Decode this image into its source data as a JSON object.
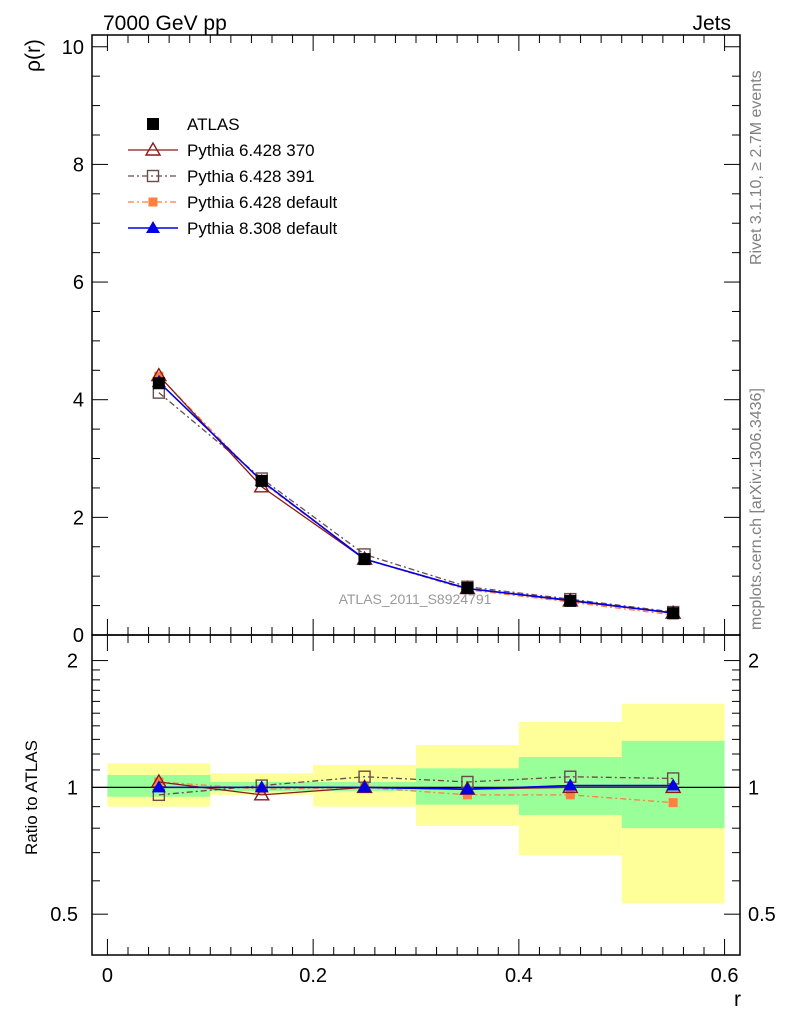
{
  "header": {
    "left": "7000 GeV pp",
    "right": "Jets"
  },
  "side_labels": {
    "rivet": "Rivet 3.1.10, ≥ 2.7M events",
    "mcplots": "mcplots.cern.ch [arXiv:1306.3436]"
  },
  "analysis_id": "ATLAS_2011_S8924791",
  "colors": {
    "data": "#000000",
    "p370": "#8b1a1a",
    "p391": "#6b4a4a",
    "p6def": "#ff7f3f",
    "p8def": "#0000e6",
    "band_stat": "#99ff99",
    "band_total": "#ffff99"
  },
  "chart_data": [
    {
      "type": "line",
      "panel": "main",
      "xlabel": "",
      "ylabel": "ρ(r)",
      "xlim": [
        -0.015,
        0.615
      ],
      "ylim": [
        0,
        10.2
      ],
      "yticks": [
        0,
        2,
        4,
        6,
        8,
        10
      ],
      "ytick_labels": [
        "0",
        "2",
        "4",
        "6",
        "8",
        "10"
      ],
      "x": [
        0.05,
        0.15,
        0.25,
        0.35,
        0.45,
        0.55
      ],
      "legend_position": "top-left",
      "series": [
        {
          "key": "data",
          "name": "ATLAS",
          "marker": "filled-square",
          "values": [
            4.28,
            2.62,
            1.29,
            0.8,
            0.58,
            0.37
          ]
        },
        {
          "key": "p370",
          "name": "Pythia 6.428 370",
          "marker": "open-triangle",
          "line": "solid",
          "values": [
            4.41,
            2.52,
            1.29,
            0.79,
            0.58,
            0.37
          ]
        },
        {
          "key": "p391",
          "name": "Pythia 6.428 391",
          "marker": "open-square",
          "line": "dash-dot",
          "values": [
            4.12,
            2.66,
            1.37,
            0.82,
            0.61,
            0.39
          ]
        },
        {
          "key": "p6def",
          "name": "Pythia 6.428 default",
          "marker": "filled-square-small",
          "line": "dash-dot",
          "values": [
            4.4,
            2.6,
            1.29,
            0.77,
            0.56,
            0.34
          ]
        },
        {
          "key": "p8def",
          "name": "Pythia 8.308 default",
          "marker": "filled-triangle",
          "line": "solid",
          "values": [
            4.3,
            2.62,
            1.29,
            0.79,
            0.59,
            0.375
          ]
        }
      ]
    },
    {
      "type": "line",
      "panel": "ratio",
      "xlabel": "r",
      "ylabel": "Ratio to ATLAS",
      "xlim": [
        -0.015,
        0.615
      ],
      "ylim": [
        0.4,
        2.3
      ],
      "yscale": "log",
      "yticks": [
        0.5,
        1,
        2
      ],
      "ytick_labels": [
        "0.5",
        "1",
        "2"
      ],
      "xticks": [
        0,
        0.2,
        0.4,
        0.6
      ],
      "xtick_labels": [
        "0",
        "0.2",
        "0.4",
        "0.6"
      ],
      "bin_edges": [
        0.0,
        0.1,
        0.2,
        0.3,
        0.4,
        0.5,
        0.6
      ],
      "band_stat": [
        [
          0.95,
          1.07
        ],
        [
          0.98,
          1.03
        ],
        [
          0.98,
          1.03
        ],
        [
          0.91,
          1.11
        ],
        [
          0.86,
          1.18
        ],
        [
          0.8,
          1.29
        ]
      ],
      "band_total": [
        [
          0.9,
          1.14
        ],
        [
          0.96,
          1.08
        ],
        [
          0.9,
          1.13
        ],
        [
          0.81,
          1.26
        ],
        [
          0.69,
          1.43
        ],
        [
          0.53,
          1.58
        ]
      ],
      "x": [
        0.05,
        0.15,
        0.25,
        0.35,
        0.45,
        0.55
      ],
      "series": [
        {
          "key": "p370",
          "values": [
            1.03,
            0.96,
            1.0,
            0.99,
            1.0,
            1.0
          ]
        },
        {
          "key": "p391",
          "values": [
            0.96,
            1.01,
            1.06,
            1.03,
            1.06,
            1.05
          ]
        },
        {
          "key": "p6def",
          "values": [
            1.03,
            0.99,
            1.0,
            0.96,
            0.96,
            0.92
          ]
        },
        {
          "key": "p8def",
          "values": [
            1.0,
            1.0,
            1.0,
            0.99,
            1.01,
            1.01
          ]
        }
      ]
    }
  ]
}
